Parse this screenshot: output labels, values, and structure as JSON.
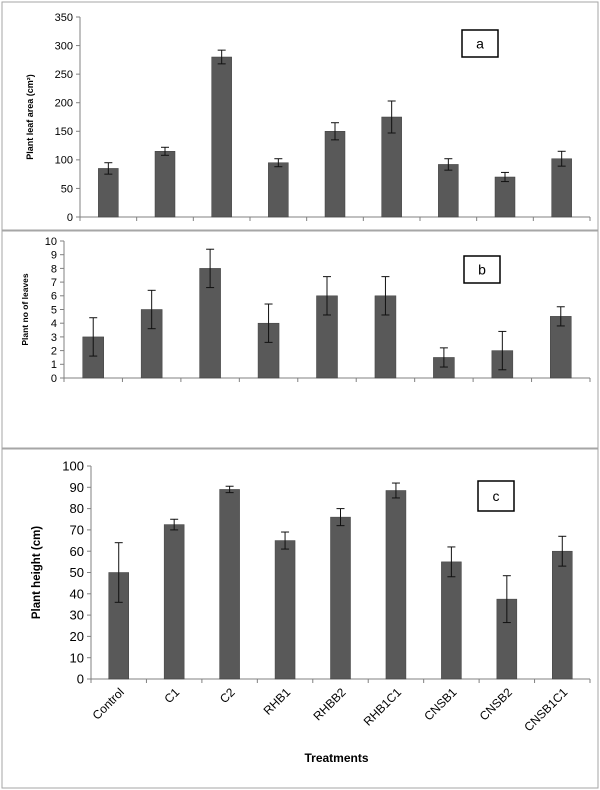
{
  "colors": {
    "bar": "#595959",
    "bar_stroke": "#3f3f3f",
    "axis": "#808080",
    "panel_border": "#a6a6a6",
    "text": "#000000"
  },
  "chart_data": [
    {
      "type": "bar",
      "panel_label": "a",
      "ylabel": "Plant leaf area (cm²)",
      "xlabel": "",
      "ylim": [
        0,
        350
      ],
      "yticks": [
        0,
        50,
        100,
        150,
        200,
        250,
        300,
        350
      ],
      "grid": false,
      "categories": [
        "Control",
        "C1",
        "C2",
        "RHB1",
        "RHBB2",
        "RHB1C1",
        "CNSB1",
        "CNSB2",
        "CNSB1C1"
      ],
      "series": [
        {
          "values": [
            85,
            115,
            280,
            95,
            150,
            175,
            92,
            70,
            102
          ],
          "error": [
            10,
            7,
            12,
            7,
            15,
            28,
            10,
            8,
            13
          ]
        }
      ]
    },
    {
      "type": "bar",
      "panel_label": "b",
      "ylabel": "Plant no of leaves",
      "xlabel": "",
      "ylim": [
        0,
        10
      ],
      "yticks": [
        0,
        1,
        2,
        3,
        4,
        5,
        6,
        7,
        8,
        9,
        10
      ],
      "grid": false,
      "categories": [
        "Control",
        "C1",
        "C2",
        "RHB1",
        "RHBB2",
        "RHB1C1",
        "CNSB1",
        "CNSB2",
        "CNSB1C1"
      ],
      "series": [
        {
          "values": [
            3,
            5,
            8,
            4,
            6,
            6,
            1.5,
            2,
            4.5
          ],
          "error": [
            1.4,
            1.4,
            1.4,
            1.4,
            1.4,
            1.4,
            0.7,
            1.4,
            0.7
          ]
        }
      ]
    },
    {
      "type": "bar",
      "panel_label": "c",
      "ylabel": "Plant height (cm)",
      "xlabel": "Treatments",
      "ylim": [
        0,
        100
      ],
      "yticks": [
        0,
        10,
        20,
        30,
        40,
        50,
        60,
        70,
        80,
        90,
        100
      ],
      "grid": false,
      "categories": [
        "Control",
        "C1",
        "C2",
        "RHB1",
        "RHBB2",
        "RHB1C1",
        "CNSB1",
        "CNSB2",
        "CNSB1C1"
      ],
      "series": [
        {
          "values": [
            50,
            72.5,
            89,
            65,
            76,
            88.5,
            55,
            37.5,
            60
          ],
          "error": [
            14,
            2.5,
            1.5,
            4,
            4,
            3.5,
            7,
            11,
            7
          ]
        }
      ]
    }
  ]
}
